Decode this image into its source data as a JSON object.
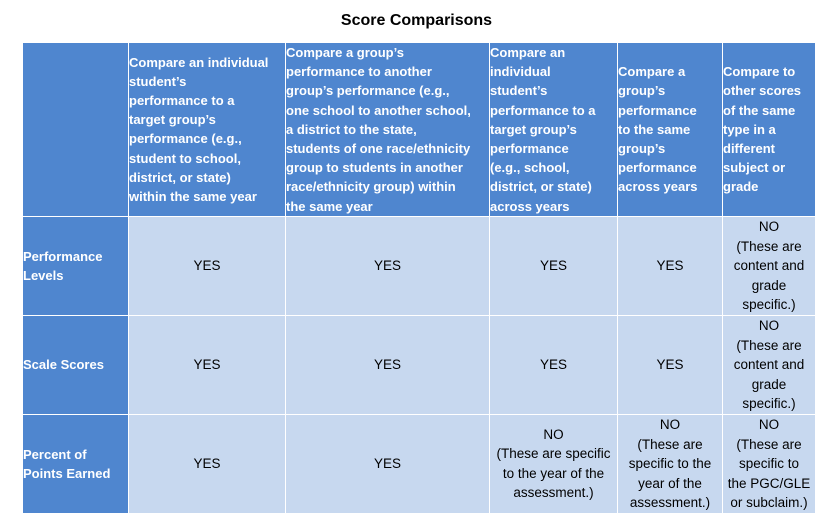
{
  "title": "Score Comparisons",
  "columns": [
    "Compare an individual\nstudent’s\nperformance to a\ntarget group’s\nperformance (e.g.,\nstudent to school,\ndistrict, or state)\nwithin the same year",
    "Compare a group’s\nperformance to another\ngroup’s performance (e.g.,\none school to another school,\na district to the state,\nstudents of one race/ethnicity\ngroup to students in another\nrace/ethnicity group) within\nthe same year",
    "Compare an\nindividual\nstudent’s\nperformance to a\ntarget group’s\nperformance\n(e.g., school,\ndistrict, or state)\nacross years",
    "Compare a\ngroup’s\nperformance\nto the same\ngroup’s\nperformance\nacross years",
    "Compare to\nother scores\nof the same\ntype in a\ndifferent\nsubject or\ngrade"
  ],
  "rows": [
    {
      "label": "Performance\nLevels",
      "cells": [
        {
          "value": "YES",
          "note": ""
        },
        {
          "value": "YES",
          "note": ""
        },
        {
          "value": "YES",
          "note": ""
        },
        {
          "value": "YES",
          "note": ""
        },
        {
          "value": "NO",
          "note": "(These are\ncontent and\ngrade\nspecific.)"
        }
      ]
    },
    {
      "label": "Scale Scores",
      "cells": [
        {
          "value": "YES",
          "note": ""
        },
        {
          "value": "YES",
          "note": ""
        },
        {
          "value": "YES",
          "note": ""
        },
        {
          "value": "YES",
          "note": ""
        },
        {
          "value": "NO",
          "note": "(These are\ncontent and\ngrade\nspecific.)"
        }
      ]
    },
    {
      "label": "Percent of\nPoints Earned",
      "cells": [
        {
          "value": "YES",
          "note": ""
        },
        {
          "value": "YES",
          "note": ""
        },
        {
          "value": "NO",
          "note": "(These are specific\nto the year of the\nassessment.)"
        },
        {
          "value": "NO",
          "note": "(These are\nspecific to the\nyear of the\nassessment.)"
        },
        {
          "value": "NO",
          "note": "(These are\nspecific to\nthe PGC/GLE\nor subclaim.)"
        }
      ]
    }
  ]
}
